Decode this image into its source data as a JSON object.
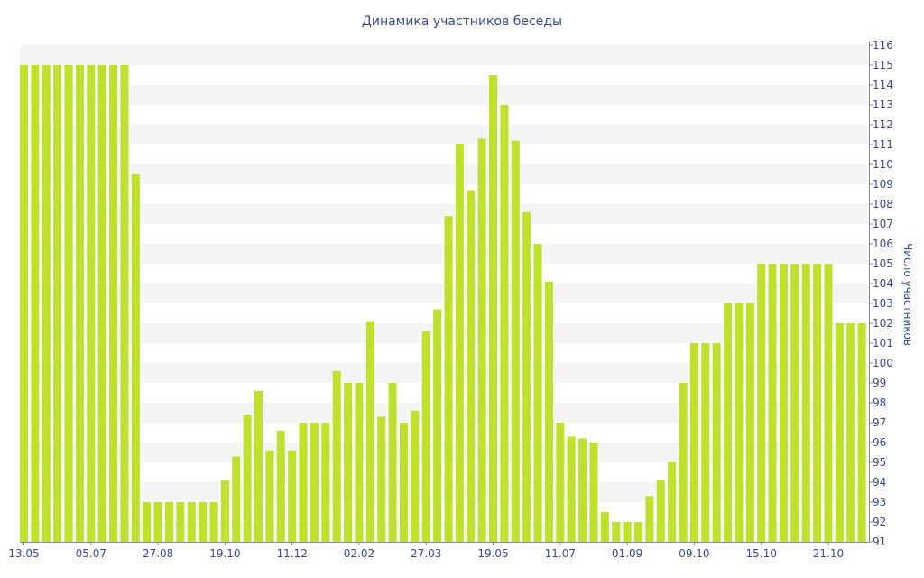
{
  "chart_data": {
    "type": "bar",
    "title": "Динамика участников беседы",
    "xlabel": "",
    "ylabel": "Число участников",
    "ylim": [
      91,
      116
    ],
    "y_axis_side": "right",
    "grid": "alternating horizontal bands",
    "legend": "none",
    "colors": {
      "bar": "#bde12d",
      "band": "#f5f5f5",
      "axis": "#888888",
      "text": "#3b4a8c"
    },
    "x_tick_labels": [
      {
        "label": "13.05",
        "index": 0
      },
      {
        "label": "05.07",
        "index": 6
      },
      {
        "label": "27.08",
        "index": 12
      },
      {
        "label": "19.10",
        "index": 18
      },
      {
        "label": "11.12",
        "index": 24
      },
      {
        "label": "02.02",
        "index": 30
      },
      {
        "label": "27.03",
        "index": 36
      },
      {
        "label": "19.05",
        "index": 42
      },
      {
        "label": "11.07",
        "index": 48
      },
      {
        "label": "01.09",
        "index": 54
      },
      {
        "label": "09.10",
        "index": 60
      },
      {
        "label": "15.10",
        "index": 66
      },
      {
        "label": "21.10",
        "index": 72
      }
    ],
    "y_ticks": [
      91,
      92,
      93,
      94,
      95,
      96,
      97,
      98,
      99,
      100,
      101,
      102,
      103,
      104,
      105,
      106,
      107,
      108,
      109,
      110,
      111,
      112,
      113,
      114,
      115,
      116
    ],
    "values": [
      115,
      115,
      115,
      115,
      115,
      115,
      115,
      115,
      115,
      115,
      109.5,
      93,
      93,
      93,
      93,
      93,
      93,
      93,
      94.1,
      95.3,
      97.4,
      98.6,
      95.6,
      96.6,
      95.6,
      97,
      97,
      97,
      99.6,
      99,
      99,
      102.1,
      97.3,
      99,
      97,
      97.6,
      101.6,
      102.7,
      107.4,
      111,
      108.7,
      111.3,
      114.5,
      113,
      111.2,
      107.6,
      106,
      104.1,
      97,
      96.3,
      96.2,
      96,
      92.5,
      92,
      92,
      92,
      93.3,
      94.1,
      95,
      99,
      101,
      101,
      101,
      103,
      103,
      103,
      105,
      105,
      105,
      105,
      105,
      105,
      105,
      102,
      102,
      102
    ]
  }
}
